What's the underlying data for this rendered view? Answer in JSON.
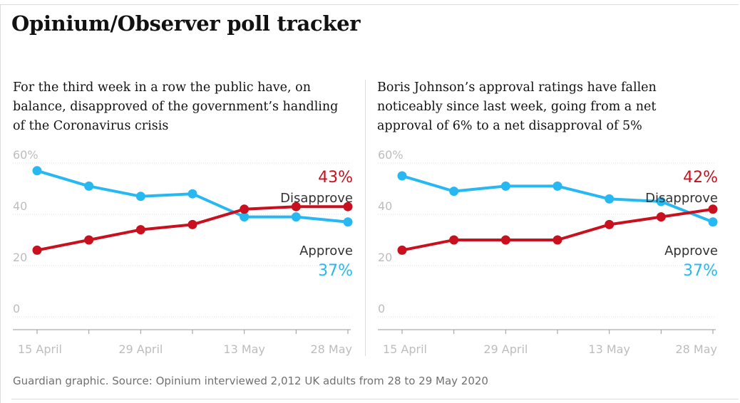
{
  "title": "Opinium/Observer poll tracker",
  "source": "Guardian graphic. Source: Opinium interviewed 2,012 UK adults from 28 to 29 May 2020",
  "colors": {
    "approve": "#27b8f2",
    "disapprove": "#c9101e",
    "axis": "#bdbdbd",
    "text": "#121212",
    "muted": "#707070"
  },
  "chart_data": [
    {
      "type": "line",
      "title": "For the third week in a row the public have, on balance, disapproved of the government’s handling of the Coronavirus crisis",
      "ylim": [
        0,
        60
      ],
      "yticks": [
        0,
        20,
        40,
        60
      ],
      "ytick_labels": [
        "0",
        "20",
        "40",
        "60%"
      ],
      "x": [
        "15 April",
        "22 April",
        "29 April",
        "6 May",
        "13 May",
        "20 May",
        "28 May"
      ],
      "xtick_labels": [
        "15 April",
        "",
        "29 April",
        "",
        "13 May",
        "",
        "28 May"
      ],
      "series": [
        {
          "name": "Approve",
          "color": "#27b8f2",
          "values": [
            57,
            51,
            47,
            48,
            39,
            39,
            37
          ],
          "label": "Approve",
          "value_label": "37%"
        },
        {
          "name": "Disapprove",
          "color": "#c9101e",
          "values": [
            26,
            30,
            34,
            36,
            42,
            43,
            43
          ],
          "label": "Disapprove",
          "value_label": "43%"
        }
      ]
    },
    {
      "type": "line",
      "title": "Boris Johnson’s approval ratings have fallen noticeably since last week, going from a net approval of 6% to a net disapproval of 5%",
      "ylim": [
        0,
        60
      ],
      "yticks": [
        0,
        20,
        40,
        60
      ],
      "ytick_labels": [
        "0",
        "20",
        "40",
        "60%"
      ],
      "x": [
        "15 April",
        "22 April",
        "29 April",
        "6 May",
        "13 May",
        "20 May",
        "28 May"
      ],
      "xtick_labels": [
        "15 April",
        "",
        "29 April",
        "",
        "13 May",
        "",
        "28 May"
      ],
      "series": [
        {
          "name": "Approve",
          "color": "#27b8f2",
          "values": [
            55,
            49,
            51,
            51,
            46,
            45,
            37
          ],
          "label": "Approve",
          "value_label": "37%"
        },
        {
          "name": "Disapprove",
          "color": "#c9101e",
          "values": [
            26,
            30,
            30,
            30,
            36,
            39,
            42
          ],
          "label": "Disapprove",
          "value_label": "42%"
        }
      ]
    }
  ]
}
